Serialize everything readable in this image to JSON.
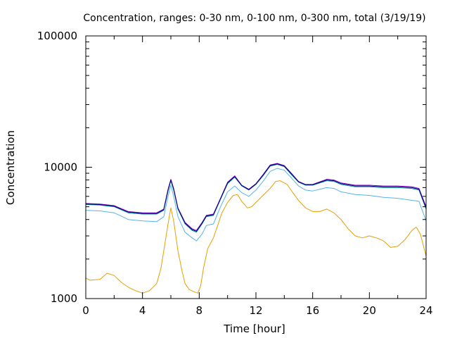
{
  "chart_data": {
    "type": "line",
    "title": "Concentration, ranges: 0-30 nm, 0-100 nm, 0-300 nm, total (3/19/19)",
    "xlabel": "Time [hour]",
    "ylabel": "Concentration",
    "xlim": [
      0,
      24
    ],
    "ylim": [
      1000,
      100000
    ],
    "yscale": "log",
    "grid": false,
    "legend": "none",
    "x_ticks": [
      0,
      4,
      8,
      12,
      16,
      20,
      24
    ],
    "x_tick_labels": [
      "0",
      "4",
      "8",
      "12",
      "16",
      "20",
      "24"
    ],
    "y_ticks": [
      1000,
      10000,
      100000
    ],
    "y_tick_labels": [
      "1000",
      "10000",
      "100000"
    ],
    "series": [
      {
        "color": "#e69f00",
        "points": [
          [
            0,
            1430
          ],
          [
            0.3,
            1380
          ],
          [
            1,
            1400
          ],
          [
            1.5,
            1560
          ],
          [
            2,
            1500
          ],
          [
            2.5,
            1330
          ],
          [
            3,
            1220
          ],
          [
            3.5,
            1150
          ],
          [
            4,
            1100
          ],
          [
            4.5,
            1150
          ],
          [
            5,
            1300
          ],
          [
            5.3,
            1700
          ],
          [
            5.6,
            2700
          ],
          [
            5.9,
            4300
          ],
          [
            6,
            4900
          ],
          [
            6.2,
            3900
          ],
          [
            6.5,
            2300
          ],
          [
            6.8,
            1600
          ],
          [
            7,
            1300
          ],
          [
            7.3,
            1170
          ],
          [
            7.7,
            1120
          ],
          [
            7.9,
            1100
          ],
          [
            8.1,
            1250
          ],
          [
            8.3,
            1700
          ],
          [
            8.6,
            2400
          ],
          [
            9,
            2900
          ],
          [
            9.3,
            3600
          ],
          [
            9.6,
            4500
          ],
          [
            10,
            5400
          ],
          [
            10.4,
            6100
          ],
          [
            10.7,
            6200
          ],
          [
            11,
            5500
          ],
          [
            11.4,
            4900
          ],
          [
            11.7,
            5000
          ],
          [
            12,
            5400
          ],
          [
            12.5,
            6100
          ],
          [
            13,
            6900
          ],
          [
            13.4,
            7800
          ],
          [
            13.7,
            7900
          ],
          [
            14.2,
            7400
          ],
          [
            14.6,
            6400
          ],
          [
            15,
            5600
          ],
          [
            15.5,
            4900
          ],
          [
            16,
            4600
          ],
          [
            16.5,
            4600
          ],
          [
            17,
            4800
          ],
          [
            17.5,
            4500
          ],
          [
            18,
            4000
          ],
          [
            18.5,
            3400
          ],
          [
            19,
            3000
          ],
          [
            19.5,
            2900
          ],
          [
            20,
            3000
          ],
          [
            20.5,
            2900
          ],
          [
            21,
            2750
          ],
          [
            21.5,
            2450
          ],
          [
            22,
            2500
          ],
          [
            22.5,
            2800
          ],
          [
            23,
            3300
          ],
          [
            23.3,
            3500
          ],
          [
            23.6,
            3100
          ],
          [
            24,
            2100
          ]
        ]
      },
      {
        "color": "#56b4e9",
        "points": [
          [
            0,
            4700
          ],
          [
            1,
            4650
          ],
          [
            2,
            4500
          ],
          [
            3,
            4000
          ],
          [
            4,
            3900
          ],
          [
            5,
            3850
          ],
          [
            5.5,
            4200
          ],
          [
            5.8,
            6000
          ],
          [
            6,
            7300
          ],
          [
            6.2,
            6000
          ],
          [
            6.5,
            4200
          ],
          [
            7,
            3200
          ],
          [
            7.5,
            2900
          ],
          [
            7.8,
            2750
          ],
          [
            8.2,
            3100
          ],
          [
            8.5,
            3600
          ],
          [
            9,
            3700
          ],
          [
            9.5,
            5000
          ],
          [
            10,
            6500
          ],
          [
            10.5,
            7200
          ],
          [
            11,
            6400
          ],
          [
            11.5,
            6000
          ],
          [
            12,
            6700
          ],
          [
            12.5,
            7800
          ],
          [
            13,
            9300
          ],
          [
            13.5,
            9800
          ],
          [
            14,
            9500
          ],
          [
            14.5,
            8300
          ],
          [
            15,
            7200
          ],
          [
            15.5,
            6700
          ],
          [
            16,
            6600
          ],
          [
            17,
            7000
          ],
          [
            17.5,
            6900
          ],
          [
            18,
            6500
          ],
          [
            19,
            6200
          ],
          [
            20,
            6100
          ],
          [
            21,
            5900
          ],
          [
            22,
            5800
          ],
          [
            23,
            5600
          ],
          [
            23.5,
            5500
          ],
          [
            24,
            3900
          ]
        ]
      },
      {
        "color": "#009e73",
        "points": [
          [
            0,
            5200
          ],
          [
            1,
            5150
          ],
          [
            2,
            5000
          ],
          [
            3,
            4500
          ],
          [
            4,
            4400
          ],
          [
            5,
            4400
          ],
          [
            5.5,
            4700
          ],
          [
            5.8,
            6600
          ],
          [
            6,
            7900
          ],
          [
            6.2,
            6700
          ],
          [
            6.5,
            4800
          ],
          [
            7,
            3700
          ],
          [
            7.5,
            3300
          ],
          [
            7.8,
            3200
          ],
          [
            8.2,
            3700
          ],
          [
            8.5,
            4200
          ],
          [
            9,
            4300
          ],
          [
            9.5,
            5700
          ],
          [
            10,
            7500
          ],
          [
            10.5,
            8400
          ],
          [
            11,
            7200
          ],
          [
            11.5,
            6700
          ],
          [
            12,
            7400
          ],
          [
            12.5,
            8600
          ],
          [
            13,
            10200
          ],
          [
            13.5,
            10500
          ],
          [
            14,
            10100
          ],
          [
            14.5,
            8800
          ],
          [
            15,
            7700
          ],
          [
            15.5,
            7300
          ],
          [
            16,
            7300
          ],
          [
            17,
            7900
          ],
          [
            17.5,
            7800
          ],
          [
            18,
            7400
          ],
          [
            19,
            7100
          ],
          [
            20,
            7100
          ],
          [
            21,
            7000
          ],
          [
            22,
            7000
          ],
          [
            23,
            6900
          ],
          [
            23.5,
            6700
          ],
          [
            24,
            4800
          ]
        ]
      },
      {
        "color": "#9400d3",
        "points": [
          [
            0,
            5300
          ],
          [
            1,
            5250
          ],
          [
            2,
            5100
          ],
          [
            3,
            4600
          ],
          [
            4,
            4500
          ],
          [
            5,
            4500
          ],
          [
            5.5,
            4800
          ],
          [
            5.8,
            6800
          ],
          [
            6,
            8100
          ],
          [
            6.2,
            6900
          ],
          [
            6.5,
            4900
          ],
          [
            7,
            3800
          ],
          [
            7.5,
            3400
          ],
          [
            7.8,
            3300
          ],
          [
            8.2,
            3800
          ],
          [
            8.5,
            4300
          ],
          [
            9,
            4400
          ],
          [
            9.5,
            5800
          ],
          [
            10,
            7700
          ],
          [
            10.5,
            8600
          ],
          [
            11,
            7300
          ],
          [
            11.5,
            6800
          ],
          [
            12,
            7500
          ],
          [
            12.5,
            8800
          ],
          [
            13,
            10400
          ],
          [
            13.5,
            10700
          ],
          [
            14,
            10300
          ],
          [
            14.5,
            9000
          ],
          [
            15,
            7800
          ],
          [
            15.5,
            7400
          ],
          [
            16,
            7400
          ],
          [
            17,
            8100
          ],
          [
            17.5,
            8000
          ],
          [
            18,
            7600
          ],
          [
            19,
            7300
          ],
          [
            20,
            7300
          ],
          [
            21,
            7200
          ],
          [
            22,
            7200
          ],
          [
            23,
            7100
          ],
          [
            23.5,
            6900
          ],
          [
            24,
            5000
          ]
        ]
      },
      {
        "color": "#00008b",
        "points": [
          [
            0,
            5250
          ],
          [
            1,
            5200
          ],
          [
            2,
            5050
          ],
          [
            3,
            4550
          ],
          [
            4,
            4450
          ],
          [
            5,
            4450
          ],
          [
            5.5,
            4750
          ],
          [
            5.8,
            6700
          ],
          [
            6,
            8000
          ],
          [
            6.2,
            6800
          ],
          [
            6.5,
            4850
          ],
          [
            7,
            3750
          ],
          [
            7.5,
            3350
          ],
          [
            7.8,
            3250
          ],
          [
            8.2,
            3750
          ],
          [
            8.5,
            4250
          ],
          [
            9,
            4350
          ],
          [
            9.5,
            5750
          ],
          [
            10,
            7600
          ],
          [
            10.5,
            8500
          ],
          [
            11,
            7250
          ],
          [
            11.5,
            6750
          ],
          [
            12,
            7450
          ],
          [
            12.5,
            8700
          ],
          [
            13,
            10300
          ],
          [
            13.5,
            10600
          ],
          [
            14,
            10200
          ],
          [
            14.5,
            8900
          ],
          [
            15,
            7750
          ],
          [
            15.5,
            7350
          ],
          [
            16,
            7350
          ],
          [
            17,
            8000
          ],
          [
            17.5,
            7900
          ],
          [
            18,
            7500
          ],
          [
            19,
            7200
          ],
          [
            20,
            7200
          ],
          [
            21,
            7100
          ],
          [
            22,
            7100
          ],
          [
            23,
            7000
          ],
          [
            23.5,
            6800
          ],
          [
            24,
            4900
          ]
        ]
      }
    ]
  }
}
